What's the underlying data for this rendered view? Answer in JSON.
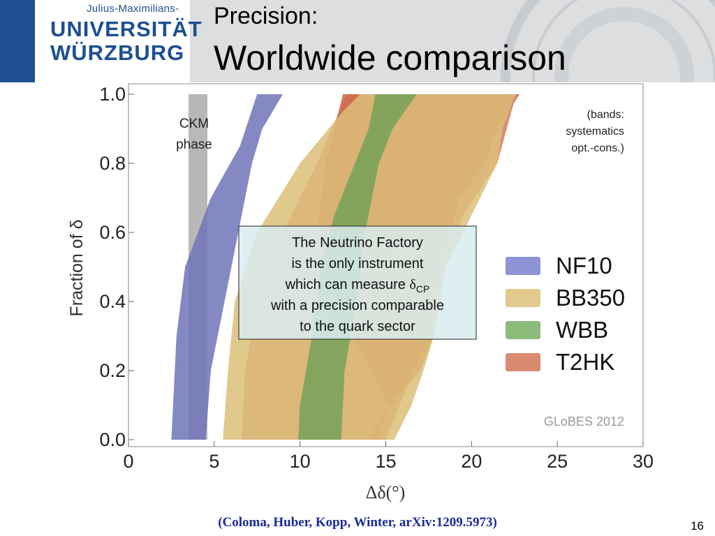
{
  "header": {
    "logo_top": "Julius-Maximilians-",
    "logo_mid": "UNIVERSITÄT",
    "logo_bot": "WÜRZBURG",
    "title_line1": "Precision:",
    "title_line2": "Worldwide comparison"
  },
  "footer": {
    "citation": "(Coloma, Huber, Kopp, Winter, arXiv:1209.5973)",
    "page_number": "16"
  },
  "colors": {
    "brand_blue": "#1d4f91",
    "NF10": "#6f73b8",
    "BB350": "#dcc07a",
    "WBB": "#6ea056",
    "T2HK": "#cf6a4a",
    "CKM": "#a8a6a8",
    "callout_fill": "#d8ecf0"
  },
  "chart_data": {
    "type": "area",
    "xlabel": "Δδ(°)",
    "ylabel": "Fraction of δ",
    "xlim": [
      0,
      30
    ],
    "ylim": [
      0,
      1
    ],
    "xticks": [
      "0",
      "5",
      "10",
      "15",
      "20",
      "25",
      "30"
    ],
    "yticks": [
      "0.0",
      "0.2",
      "0.4",
      "0.6",
      "0.8",
      "1.0"
    ],
    "grid": false,
    "legend_placement": "right",
    "series": [
      {
        "name": "T2HK",
        "left": [
          [
            14.0,
            0.0
          ],
          [
            14.5,
            0.05
          ],
          [
            15.2,
            0.1
          ],
          [
            12.5,
            0.35
          ],
          [
            11.0,
            0.6
          ],
          [
            11.5,
            0.8
          ],
          [
            12.5,
            1.0
          ]
        ],
        "right": [
          [
            14.5,
            0.0
          ],
          [
            15.2,
            0.1
          ],
          [
            17.0,
            0.2
          ],
          [
            17.8,
            0.3
          ],
          [
            18.2,
            0.5
          ],
          [
            19.3,
            0.7
          ],
          [
            20.8,
            0.8
          ],
          [
            21.5,
            0.9
          ],
          [
            22.8,
            1.0
          ]
        ],
        "outer_left": [
          [
            6.6,
            0.0
          ],
          [
            6.8,
            0.2
          ],
          [
            7.5,
            0.4
          ],
          [
            9.0,
            0.6
          ],
          [
            11.0,
            0.8
          ],
          [
            12.7,
            1.0
          ]
        ],
        "outer_right": [
          [
            15.0,
            0.0
          ],
          [
            16.6,
            0.2
          ],
          [
            17.5,
            0.3
          ],
          [
            18.5,
            0.5
          ],
          [
            19.5,
            0.65
          ],
          [
            21.5,
            0.8
          ],
          [
            22.6,
            1.0
          ]
        ]
      },
      {
        "name": "BB350",
        "left": [
          [
            5.5,
            0.0
          ],
          [
            5.8,
            0.2
          ],
          [
            6.2,
            0.4
          ],
          [
            7.5,
            0.6
          ],
          [
            10.0,
            0.8
          ],
          [
            12.5,
            0.95
          ],
          [
            13.5,
            1.0
          ]
        ],
        "right": [
          [
            15.5,
            0.0
          ],
          [
            16.5,
            0.1
          ],
          [
            17.2,
            0.2
          ],
          [
            17.8,
            0.3
          ],
          [
            18.5,
            0.5
          ],
          [
            19.5,
            0.6
          ],
          [
            20.5,
            0.7
          ],
          [
            21.5,
            0.8
          ],
          [
            21.8,
            0.9
          ],
          [
            22.6,
            1.0
          ]
        ]
      },
      {
        "name": "WBB",
        "left": [
          [
            9.9,
            0.0
          ],
          [
            10.0,
            0.1
          ],
          [
            10.7,
            0.3
          ],
          [
            11.2,
            0.5
          ],
          [
            12.0,
            0.65
          ],
          [
            13.2,
            0.8
          ],
          [
            14.0,
            0.9
          ],
          [
            14.4,
            1.0
          ]
        ],
        "right": [
          [
            12.4,
            0.0
          ],
          [
            12.6,
            0.2
          ],
          [
            13.3,
            0.4
          ],
          [
            13.8,
            0.6
          ],
          [
            14.6,
            0.8
          ],
          [
            15.4,
            0.9
          ],
          [
            16.8,
            1.0
          ]
        ]
      },
      {
        "name": "NF10",
        "left": [
          [
            2.5,
            0.0
          ],
          [
            2.8,
            0.3
          ],
          [
            3.3,
            0.5
          ],
          [
            4.8,
            0.7
          ],
          [
            6.5,
            0.85
          ],
          [
            7.5,
            1.0
          ]
        ],
        "right": [
          [
            4.5,
            0.0
          ],
          [
            4.8,
            0.2
          ],
          [
            5.6,
            0.4
          ],
          [
            6.4,
            0.6
          ],
          [
            7.2,
            0.8
          ],
          [
            7.8,
            0.9
          ],
          [
            9.0,
            1.0
          ]
        ]
      }
    ],
    "ckm_band": [
      3.5,
      4.6
    ],
    "annotations": {
      "ckm_line1": "CKM",
      "ckm_line2": "phase",
      "bands_line1": "(bands:",
      "bands_line2": "systematics",
      "bands_line3": "opt.-cons.)",
      "callout_line1": "The Neutrino Factory",
      "callout_line2": "is the only instrument",
      "callout_line3_pre": "which can measure ",
      "callout_delta": "δ",
      "callout_sub": "CP",
      "callout_line4": "with a precision comparable",
      "callout_line5": "to the quark sector",
      "source": "GLoBES 2012"
    },
    "legend": [
      "NF10",
      "BB350",
      "WBB",
      "T2HK"
    ]
  }
}
